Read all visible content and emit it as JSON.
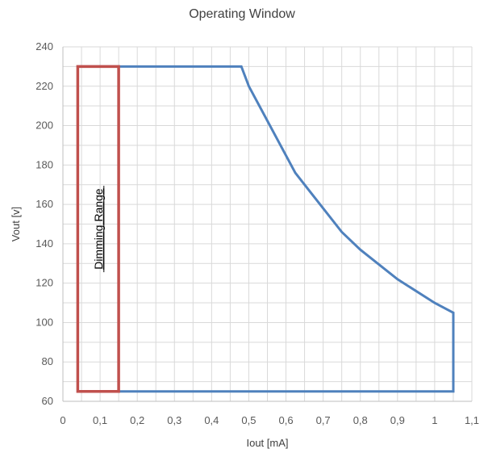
{
  "chart_data": {
    "type": "line",
    "title": "Operating Window",
    "xlabel": "Iout [mA]",
    "ylabel": "Vout [v]",
    "xlim": [
      0,
      1.1
    ],
    "ylim": [
      60,
      240
    ],
    "x_ticks": [
      "0",
      "0,1",
      "0,2",
      "0,3",
      "0,4",
      "0,5",
      "0,6",
      "0,7",
      "0,8",
      "0,9",
      "1",
      "1,1"
    ],
    "y_ticks": [
      "60",
      "80",
      "100",
      "120",
      "140",
      "160",
      "180",
      "200",
      "220",
      "240"
    ],
    "grid": true,
    "series": [
      {
        "color": "#4f81bd",
        "points": [
          {
            "x": 0.04,
            "y": 230
          },
          {
            "x": 0.48,
            "y": 230
          },
          {
            "x": 0.5,
            "y": 220
          },
          {
            "x": 0.625,
            "y": 176
          },
          {
            "x": 0.75,
            "y": 146
          },
          {
            "x": 0.8,
            "y": 137
          },
          {
            "x": 0.9,
            "y": 122
          },
          {
            "x": 1.0,
            "y": 110
          },
          {
            "x": 1.05,
            "y": 105
          },
          {
            "x": 1.05,
            "y": 65
          },
          {
            "x": 0.15,
            "y": 65
          }
        ]
      },
      {
        "color": "#c0504d",
        "points": [
          {
            "x": 0.04,
            "y": 65
          },
          {
            "x": 0.04,
            "y": 230
          },
          {
            "x": 0.15,
            "y": 230
          },
          {
            "x": 0.15,
            "y": 65
          },
          {
            "x": 0.04,
            "y": 65
          }
        ]
      }
    ],
    "annotations": [
      {
        "text": "Dimming Range",
        "x": 0.095,
        "y": 147.5,
        "rotation": -90
      }
    ]
  }
}
